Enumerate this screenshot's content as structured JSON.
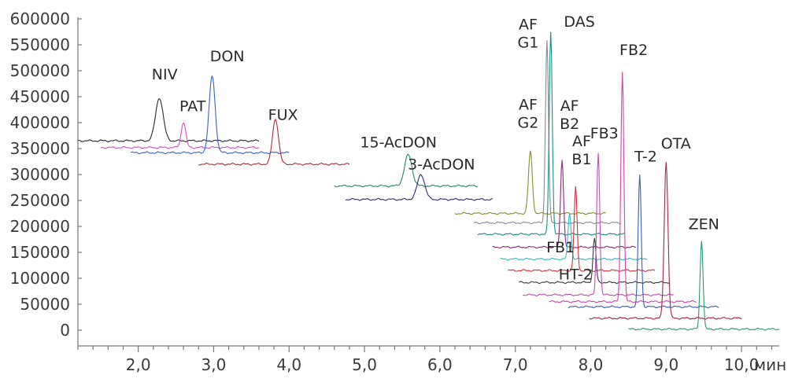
{
  "chart_data": {
    "type": "line",
    "title": "",
    "xlabel": "мин",
    "ylabel": "",
    "xlim": [
      1.2,
      10.5
    ],
    "ylim": [
      0,
      600000
    ],
    "x_ticks": [
      2.0,
      3.0,
      4.0,
      5.0,
      6.0,
      7.0,
      8.0,
      9.0,
      10.0
    ],
    "x_tick_labels": [
      "2,0",
      "3,0",
      "4,0",
      "5,0",
      "6,0",
      "7,0",
      "8,0",
      "9,0",
      "10,0"
    ],
    "y_ticks": [
      0,
      50000,
      100000,
      150000,
      200000,
      250000,
      300000,
      350000,
      400000,
      450000,
      500000,
      550000,
      600000
    ],
    "y_tick_labels": [
      "0",
      "50000",
      "100000",
      "150000",
      "200000",
      "250000",
      "300000",
      "350000",
      "400000",
      "450000",
      "500000",
      "550000",
      "600000"
    ],
    "grid": false,
    "legend": "none",
    "series": [
      {
        "name": "NIV",
        "label_lines": [
          "NIV"
        ],
        "color": "#2b2b2b",
        "x_start": 1.2,
        "x_end": 3.6,
        "baseline": 365000,
        "peak_x": 2.28,
        "peak_y": 448000,
        "peak_width": 0.05,
        "label_x": 2.35,
        "label_y": 483000
      },
      {
        "name": "PAT",
        "label_lines": [
          "PAT"
        ],
        "color": "#cc55bb",
        "x_start": 1.5,
        "x_end": 3.6,
        "baseline": 352000,
        "peak_x": 2.6,
        "peak_y": 401000,
        "peak_width": 0.03,
        "label_x": 2.72,
        "label_y": 422000
      },
      {
        "name": "DON",
        "label_lines": [
          "DON"
        ],
        "color": "#3a62c8",
        "x_start": 1.9,
        "x_end": 4.0,
        "baseline": 342000,
        "peak_x": 2.98,
        "peak_y": 490000,
        "peak_width": 0.04,
        "label_x": 3.18,
        "label_y": 518000
      },
      {
        "name": "FUX",
        "label_lines": [
          "FUX"
        ],
        "color": "#a82e3c",
        "x_start": 2.8,
        "x_end": 4.8,
        "baseline": 320000,
        "peak_x": 3.82,
        "peak_y": 407000,
        "peak_width": 0.04,
        "label_x": 3.92,
        "label_y": 405000
      },
      {
        "name": "15-AcDON",
        "label_lines": [
          "15-AcDON"
        ],
        "color": "#1f8a6a",
        "x_start": 4.6,
        "x_end": 6.5,
        "baseline": 278000,
        "peak_x": 5.58,
        "peak_y": 338000,
        "peak_width": 0.05,
        "label_x": 5.45,
        "label_y": 352000
      },
      {
        "name": "3-AcDON",
        "label_lines": [
          "3-AcDON"
        ],
        "color": "#2e2e7a",
        "x_start": 4.75,
        "x_end": 6.7,
        "baseline": 252000,
        "peak_x": 5.75,
        "peak_y": 300000,
        "peak_width": 0.05,
        "label_x": 6.02,
        "label_y": 310000
      },
      {
        "name": "AF G2",
        "label_lines": [
          "AF",
          "G2"
        ],
        "color": "#8c8c30",
        "x_start": 6.2,
        "x_end": 8.2,
        "baseline": 225000,
        "peak_x": 7.2,
        "peak_y": 345000,
        "peak_width": 0.025,
        "label_x": 7.17,
        "label_y": 390000
      },
      {
        "name": "AF G1",
        "label_lines": [
          "AF",
          "G1"
        ],
        "color": "#8a8a8a",
        "x_start": 6.45,
        "x_end": 8.4,
        "baseline": 207000,
        "peak_x": 7.42,
        "peak_y": 560000,
        "peak_width": 0.02,
        "label_x": 7.17,
        "label_y": 545000
      },
      {
        "name": "DAS",
        "label_lines": [
          "DAS"
        ],
        "color": "#17908a",
        "x_start": 6.5,
        "x_end": 8.45,
        "baseline": 185000,
        "peak_x": 7.47,
        "peak_y": 575000,
        "peak_width": 0.02,
        "label_x": 7.85,
        "label_y": 585000
      },
      {
        "name": "AF B2",
        "label_lines": [
          "AF",
          "B2"
        ],
        "color": "#8a2a7a",
        "x_start": 6.7,
        "x_end": 8.6,
        "baseline": 160000,
        "peak_x": 7.62,
        "peak_y": 330000,
        "peak_width": 0.02,
        "label_x": 7.72,
        "label_y": 388000
      },
      {
        "name": "FB1",
        "label_lines": [
          "FB1"
        ],
        "color": "#35b8c8",
        "x_start": 6.8,
        "x_end": 8.75,
        "baseline": 137000,
        "peak_x": 7.72,
        "peak_y": 226000,
        "peak_width": 0.02,
        "label_x": 7.6,
        "label_y": 150000
      },
      {
        "name": "AF B1",
        "label_lines": [
          "AF",
          "B1"
        ],
        "color": "#d8303a",
        "x_start": 6.9,
        "x_end": 8.85,
        "baseline": 115000,
        "peak_x": 7.8,
        "peak_y": 275000,
        "peak_width": 0.02,
        "label_x": 7.88,
        "label_y": 320000
      },
      {
        "name": "HT-2",
        "label_lines": [
          "HT-2"
        ],
        "color": "#3a3a3a",
        "x_start": 7.05,
        "x_end": 9.05,
        "baseline": 92000,
        "peak_x": 8.05,
        "peak_y": 177000,
        "peak_width": 0.02,
        "label_x": 7.8,
        "label_y": 98000
      },
      {
        "name": "FB3",
        "label_lines": [
          "FB3"
        ],
        "color": "#c050b0",
        "x_start": 7.1,
        "x_end": 9.1,
        "baseline": 68000,
        "peak_x": 8.1,
        "peak_y": 343000,
        "peak_width": 0.02,
        "label_x": 8.18,
        "label_y": 370000
      },
      {
        "name": "FB2",
        "label_lines": [
          "FB2"
        ],
        "color": "#cc44aa",
        "x_start": 7.45,
        "x_end": 9.4,
        "baseline": 55000,
        "peak_x": 8.42,
        "peak_y": 500000,
        "peak_width": 0.02,
        "label_x": 8.57,
        "label_y": 530000
      },
      {
        "name": "T-2",
        "label_lines": [
          "T-2"
        ],
        "color": "#3a5cc0",
        "x_start": 7.7,
        "x_end": 9.7,
        "baseline": 45000,
        "peak_x": 8.65,
        "peak_y": 300000,
        "peak_width": 0.02,
        "label_x": 8.73,
        "label_y": 325000
      },
      {
        "name": "OTA",
        "label_lines": [
          "OTA"
        ],
        "color": "#a02840",
        "x_start": 7.98,
        "x_end": 10.0,
        "baseline": 23000,
        "peak_x": 9.0,
        "peak_y": 325000,
        "peak_width": 0.025,
        "label_x": 9.13,
        "label_y": 350000
      },
      {
        "name": "ZEN",
        "label_lines": [
          "ZEN"
        ],
        "color": "#2a9a6a",
        "x_start": 8.5,
        "x_end": 10.5,
        "baseline": 2000,
        "peak_x": 9.47,
        "peak_y": 173000,
        "peak_width": 0.02,
        "label_x": 9.5,
        "label_y": 195000
      }
    ]
  }
}
